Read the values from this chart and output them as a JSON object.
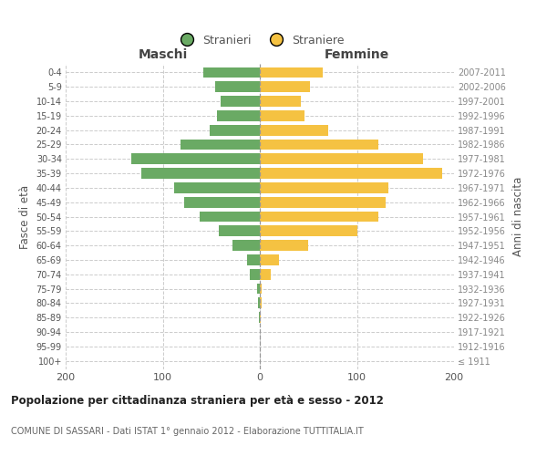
{
  "age_groups": [
    "100+",
    "95-99",
    "90-94",
    "85-89",
    "80-84",
    "75-79",
    "70-74",
    "65-69",
    "60-64",
    "55-59",
    "50-54",
    "45-49",
    "40-44",
    "35-39",
    "30-34",
    "25-29",
    "20-24",
    "15-19",
    "10-14",
    "5-9",
    "0-4"
  ],
  "birth_years": [
    "≤ 1911",
    "1912-1916",
    "1917-1921",
    "1922-1926",
    "1927-1931",
    "1932-1936",
    "1937-1941",
    "1942-1946",
    "1947-1951",
    "1952-1956",
    "1957-1961",
    "1962-1966",
    "1967-1971",
    "1972-1976",
    "1977-1981",
    "1982-1986",
    "1987-1991",
    "1992-1996",
    "1997-2001",
    "2002-2006",
    "2007-2011"
  ],
  "males": [
    0,
    0,
    0,
    1,
    2,
    3,
    10,
    13,
    28,
    42,
    62,
    78,
    88,
    122,
    132,
    82,
    52,
    44,
    40,
    46,
    58
  ],
  "females": [
    0,
    0,
    0,
    1,
    2,
    2,
    11,
    20,
    50,
    100,
    122,
    130,
    132,
    188,
    168,
    122,
    70,
    46,
    42,
    52,
    65
  ],
  "male_color": "#6aaa64",
  "female_color": "#f5c242",
  "title": "Popolazione per cittadinanza straniera per età e sesso - 2012",
  "subtitle": "COMUNE DI SASSARI - Dati ISTAT 1° gennaio 2012 - Elaborazione TUTTITALIA.IT",
  "legend_male": "Stranieri",
  "legend_female": "Straniere",
  "ylabel_left": "Fasce di età",
  "ylabel_right": "Anni di nascita",
  "label_maschi": "Maschi",
  "label_femmine": "Femmine",
  "xlim": 200,
  "grid_color": "#cccccc",
  "background_color": "#ffffff",
  "bar_height": 0.75,
  "legend_circle_size": 10
}
